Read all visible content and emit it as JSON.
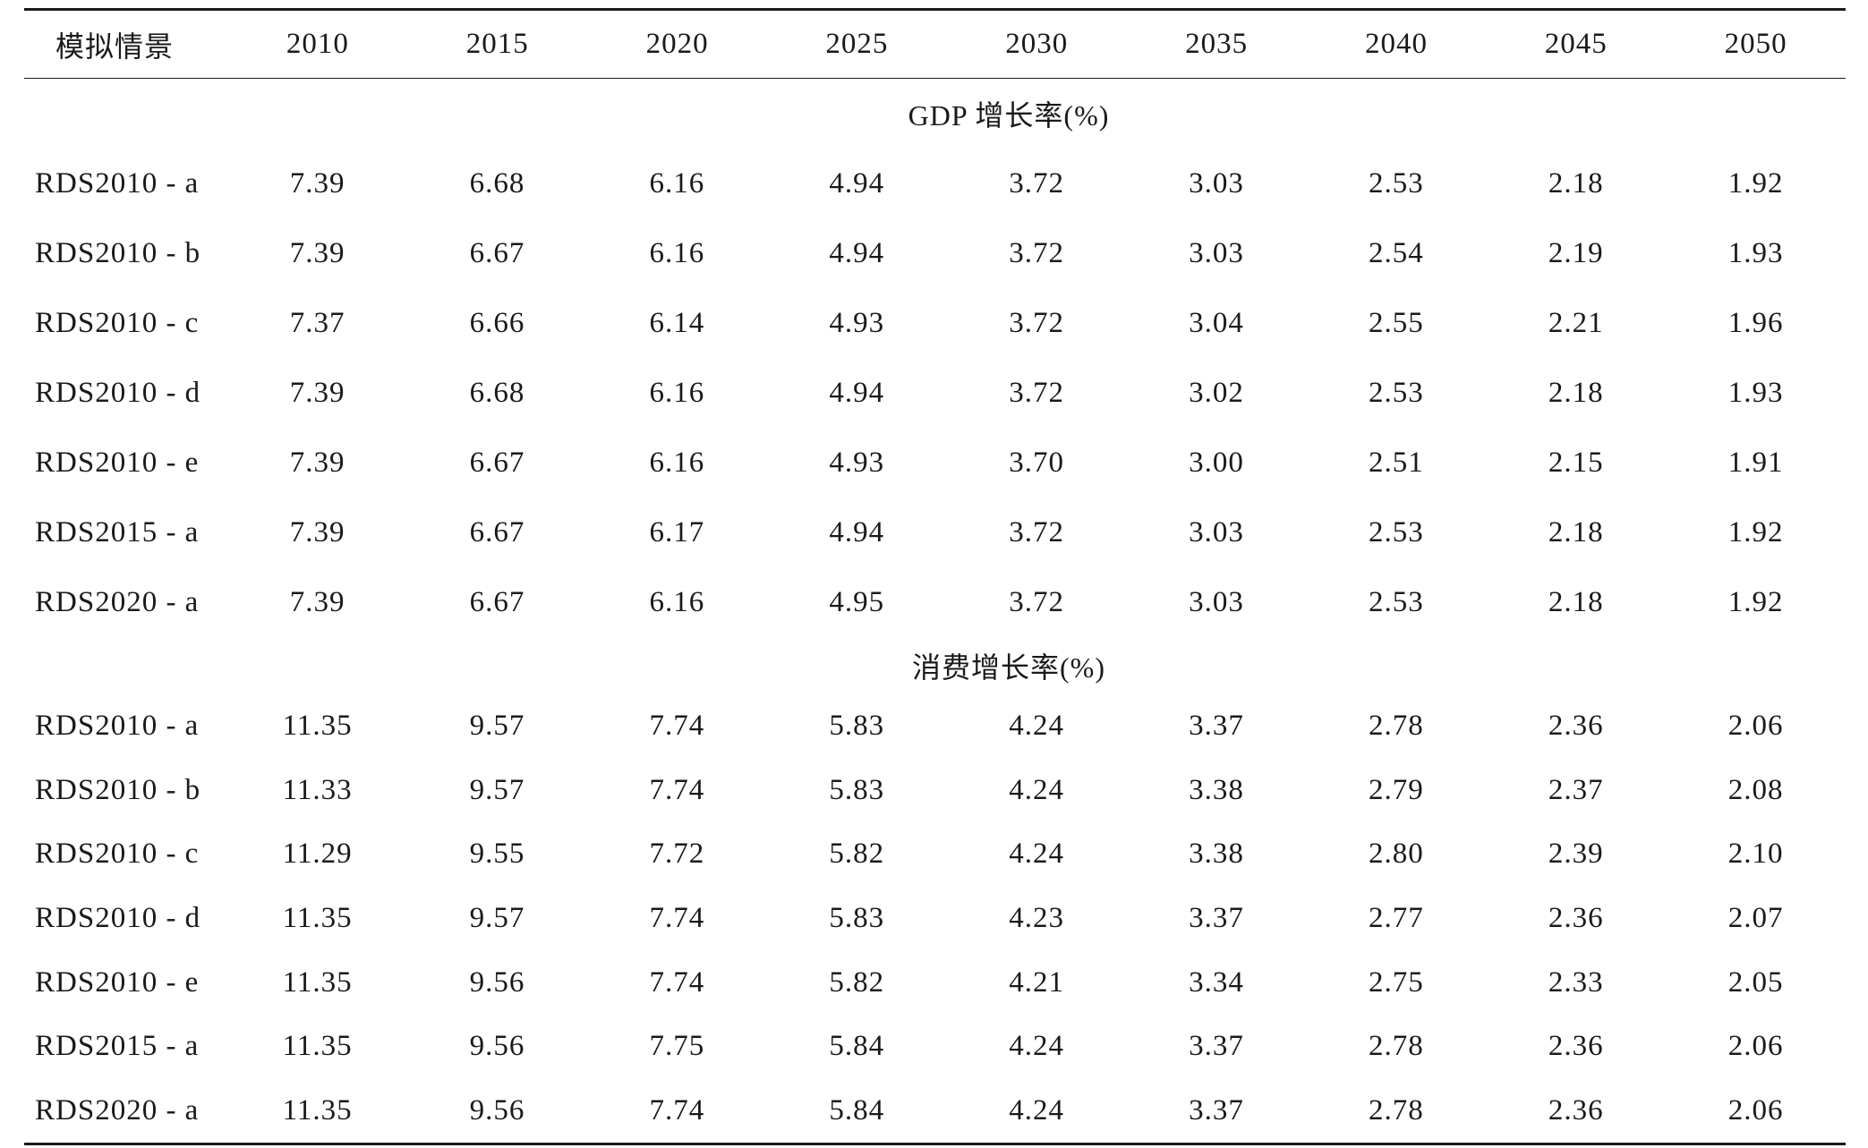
{
  "table": {
    "header": {
      "label": "模拟情景",
      "years": [
        "2010",
        "2015",
        "2020",
        "2025",
        "2030",
        "2035",
        "2040",
        "2045",
        "2050"
      ]
    },
    "sections": [
      {
        "title": "GDP 增长率(%)",
        "rows": [
          {
            "label": "RDS2010 - a",
            "values": [
              "7.39",
              "6.68",
              "6.16",
              "4.94",
              "3.72",
              "3.03",
              "2.53",
              "2.18",
              "1.92"
            ]
          },
          {
            "label": "RDS2010 - b",
            "values": [
              "7.39",
              "6.67",
              "6.16",
              "4.94",
              "3.72",
              "3.03",
              "2.54",
              "2.19",
              "1.93"
            ]
          },
          {
            "label": "RDS2010 - c",
            "values": [
              "7.37",
              "6.66",
              "6.14",
              "4.93",
              "3.72",
              "3.04",
              "2.55",
              "2.21",
              "1.96"
            ]
          },
          {
            "label": "RDS2010 - d",
            "values": [
              "7.39",
              "6.68",
              "6.16",
              "4.94",
              "3.72",
              "3.02",
              "2.53",
              "2.18",
              "1.93"
            ]
          },
          {
            "label": "RDS2010 - e",
            "values": [
              "7.39",
              "6.67",
              "6.16",
              "4.93",
              "3.70",
              "3.00",
              "2.51",
              "2.15",
              "1.91"
            ]
          },
          {
            "label": "RDS2015 - a",
            "values": [
              "7.39",
              "6.67",
              "6.17",
              "4.94",
              "3.72",
              "3.03",
              "2.53",
              "2.18",
              "1.92"
            ]
          },
          {
            "label": "RDS2020 - a",
            "values": [
              "7.39",
              "6.67",
              "6.16",
              "4.95",
              "3.72",
              "3.03",
              "2.53",
              "2.18",
              "1.92"
            ]
          }
        ]
      },
      {
        "title": "消费增长率(%)",
        "rows": [
          {
            "label": "RDS2010 - a",
            "values": [
              "11.35",
              "9.57",
              "7.74",
              "5.83",
              "4.24",
              "3.37",
              "2.78",
              "2.36",
              "2.06"
            ]
          },
          {
            "label": "RDS2010 - b",
            "values": [
              "11.33",
              "9.57",
              "7.74",
              "5.83",
              "4.24",
              "3.38",
              "2.79",
              "2.37",
              "2.08"
            ]
          },
          {
            "label": "RDS2010 - c",
            "values": [
              "11.29",
              "9.55",
              "7.72",
              "5.82",
              "4.24",
              "3.38",
              "2.80",
              "2.39",
              "2.10"
            ]
          },
          {
            "label": "RDS2010 - d",
            "values": [
              "11.35",
              "9.57",
              "7.74",
              "5.83",
              "4.23",
              "3.37",
              "2.77",
              "2.36",
              "2.07"
            ]
          },
          {
            "label": "RDS2010 - e",
            "values": [
              "11.35",
              "9.56",
              "7.74",
              "5.82",
              "4.21",
              "3.34",
              "2.75",
              "2.33",
              "2.05"
            ]
          },
          {
            "label": "RDS2015 - a",
            "values": [
              "11.35",
              "9.56",
              "7.75",
              "5.84",
              "4.24",
              "3.37",
              "2.78",
              "2.36",
              "2.06"
            ]
          },
          {
            "label": "RDS2020 - a",
            "values": [
              "11.35",
              "9.56",
              "7.74",
              "5.84",
              "4.24",
              "3.37",
              "2.78",
              "2.36",
              "2.06"
            ]
          }
        ]
      }
    ]
  }
}
